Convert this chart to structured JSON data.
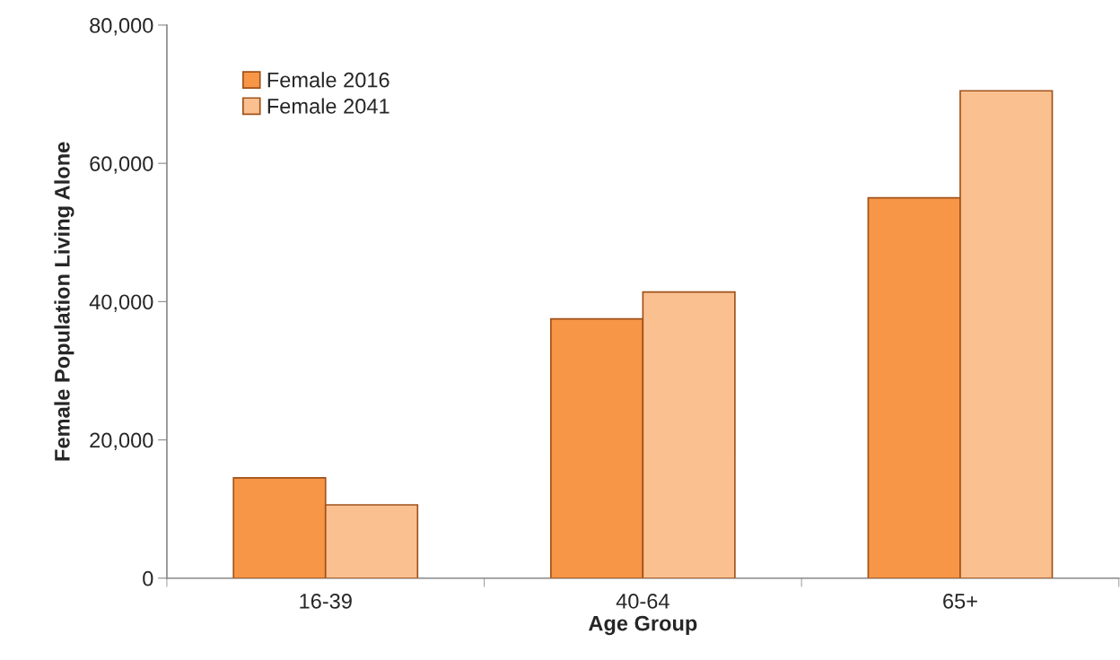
{
  "chart_data": {
    "type": "bar",
    "xlabel": "Age Group",
    "ylabel": "Female Population Living Alone",
    "categories": [
      "16-39",
      "40-64",
      "65+"
    ],
    "series": [
      {
        "name": "Female 2016",
        "color": "#f79646",
        "values": [
          14500,
          37500,
          55000
        ]
      },
      {
        "name": "Female 2041",
        "color": "#fac090",
        "values": [
          10600,
          41400,
          70500
        ]
      }
    ],
    "ylim": [
      0,
      80000
    ],
    "yticks": [
      0,
      {
        "value": 20000,
        "label": "20,000"
      },
      {
        "value": 40000,
        "label": "40,000"
      },
      {
        "value": 60000,
        "label": "60,000"
      },
      {
        "value": 80000,
        "label": "80,000"
      }
    ],
    "grid": false,
    "legend": "top left"
  }
}
